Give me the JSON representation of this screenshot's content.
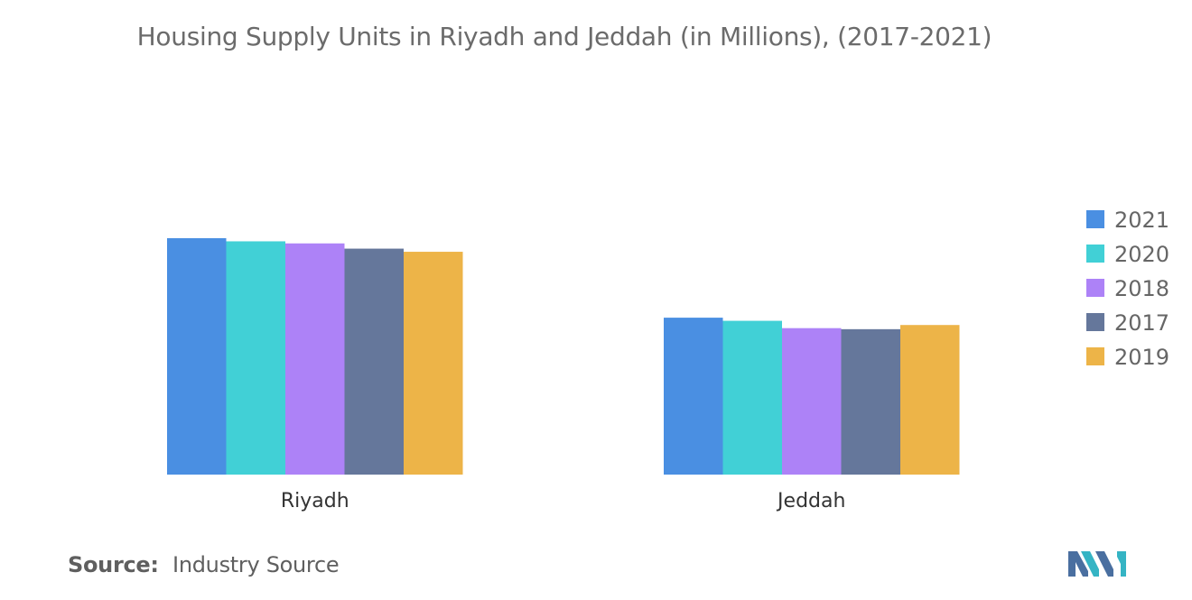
{
  "title": "Housing Supply Units in Riyadh and Jeddah (in Millions), (2017-2021)",
  "source": {
    "label": "Source:",
    "text": "Industry Source"
  },
  "colors": {
    "2021": "#4a8fe2",
    "2020": "#41d0d6",
    "2018": "#ad82f7",
    "2017": "#65779b",
    "2019": "#edb448"
  },
  "chart_data": {
    "type": "bar",
    "categories": [
      "Riyadh",
      "Jeddah"
    ],
    "series": [
      {
        "name": "2021",
        "values": [
          1.13,
          0.75
        ]
      },
      {
        "name": "2020",
        "values": [
          1.115,
          0.735
        ]
      },
      {
        "name": "2018",
        "values": [
          1.105,
          0.7
        ]
      },
      {
        "name": "2017",
        "values": [
          1.08,
          0.695
        ]
      },
      {
        "name": "2019",
        "values": [
          1.065,
          0.715
        ]
      }
    ],
    "title": "Housing Supply Units in Riyadh and Jeddah (in Millions), (2017-2021)",
    "xlabel": "",
    "ylabel": "",
    "ylim": [
      0,
      1.6
    ],
    "grid": false,
    "legend": "right"
  }
}
